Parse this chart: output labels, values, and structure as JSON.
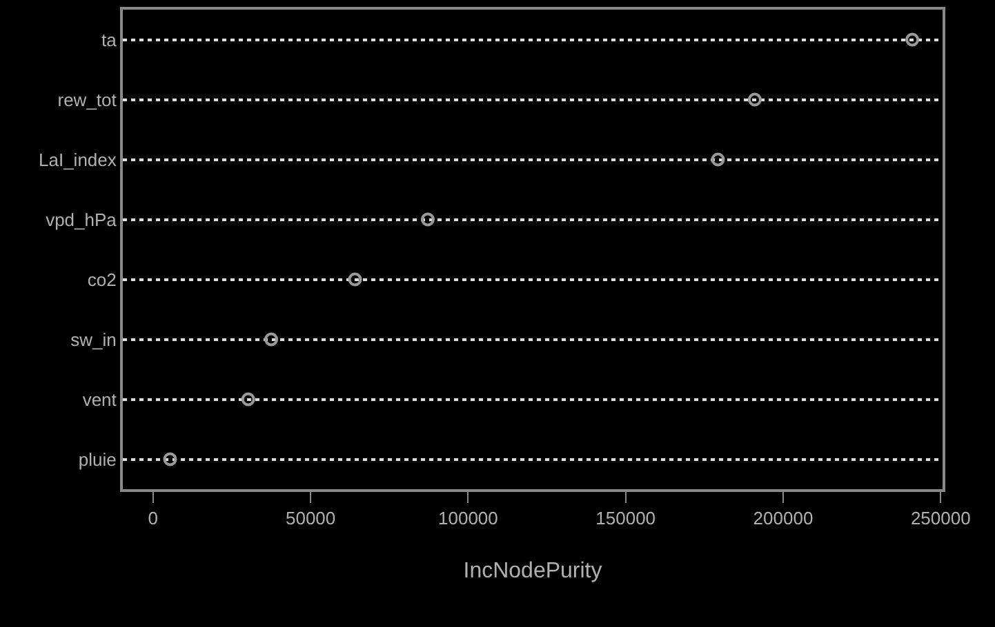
{
  "chart_data": {
    "type": "scatter",
    "xlabel": "IncNodePurity",
    "categories": [
      "ta",
      "rew_tot",
      "LaI_index",
      "vpd_hPa",
      "co2",
      "sw_in",
      "vent",
      "pluie"
    ],
    "orientation": "horizontal",
    "series": [
      {
        "color": "#9a9a9a",
        "values": [
          241000,
          191000,
          179300,
          87200,
          64100,
          37500,
          30200,
          5400
        ]
      }
    ],
    "xlim": [
      -9600,
      250600
    ],
    "xticks": [
      0,
      50000,
      100000,
      150000,
      200000,
      250000
    ],
    "grid": "y",
    "marker": "circle"
  }
}
